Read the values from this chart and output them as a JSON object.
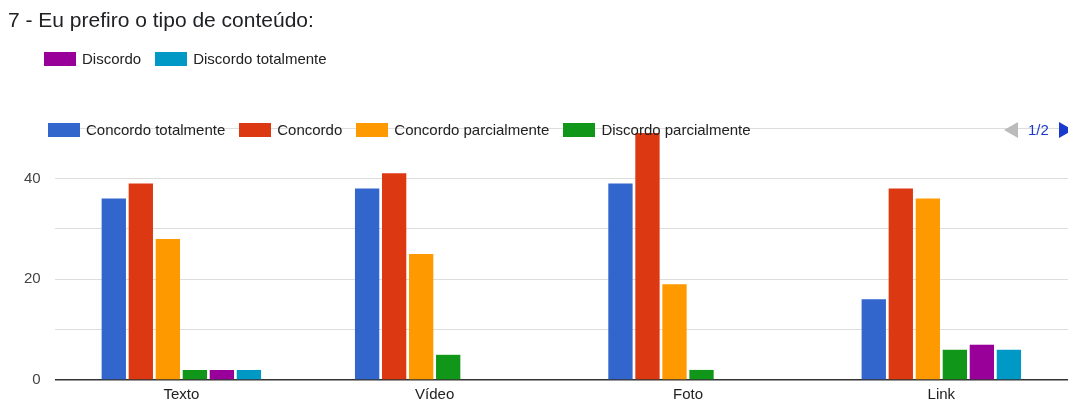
{
  "chart_data": {
    "type": "bar",
    "title": "7 - Eu prefiro o tipo de conteúdo:",
    "categories": [
      "Texto",
      "Vídeo",
      "Foto",
      "Link"
    ],
    "series": [
      {
        "name": "Concordo totalmente",
        "color": "#3366cc",
        "values": [
          36,
          38,
          39,
          16
        ]
      },
      {
        "name": "Concordo",
        "color": "#dc3912",
        "values": [
          39,
          41,
          49,
          38
        ]
      },
      {
        "name": "Concordo parcialmente",
        "color": "#ff9900",
        "values": [
          28,
          25,
          19,
          36
        ]
      },
      {
        "name": "Discordo parcialmente",
        "color": "#109618",
        "values": [
          2,
          5,
          2,
          6
        ]
      },
      {
        "name": "Discordo",
        "color": "#990099",
        "values": [
          2,
          0,
          0,
          7
        ]
      },
      {
        "name": "Discordo totalmente",
        "color": "#0099c6",
        "values": [
          2,
          0,
          0,
          6
        ]
      }
    ],
    "ylim": [
      0,
      50
    ],
    "yticks": [
      0,
      {
        "value": 10,
        "label": null
      },
      20,
      {
        "value": 30,
        "label": null
      },
      40,
      {
        "value": 50,
        "label": null
      }
    ],
    "grid": "y",
    "legend": "top",
    "annotations": [
      "1/2"
    ]
  }
}
